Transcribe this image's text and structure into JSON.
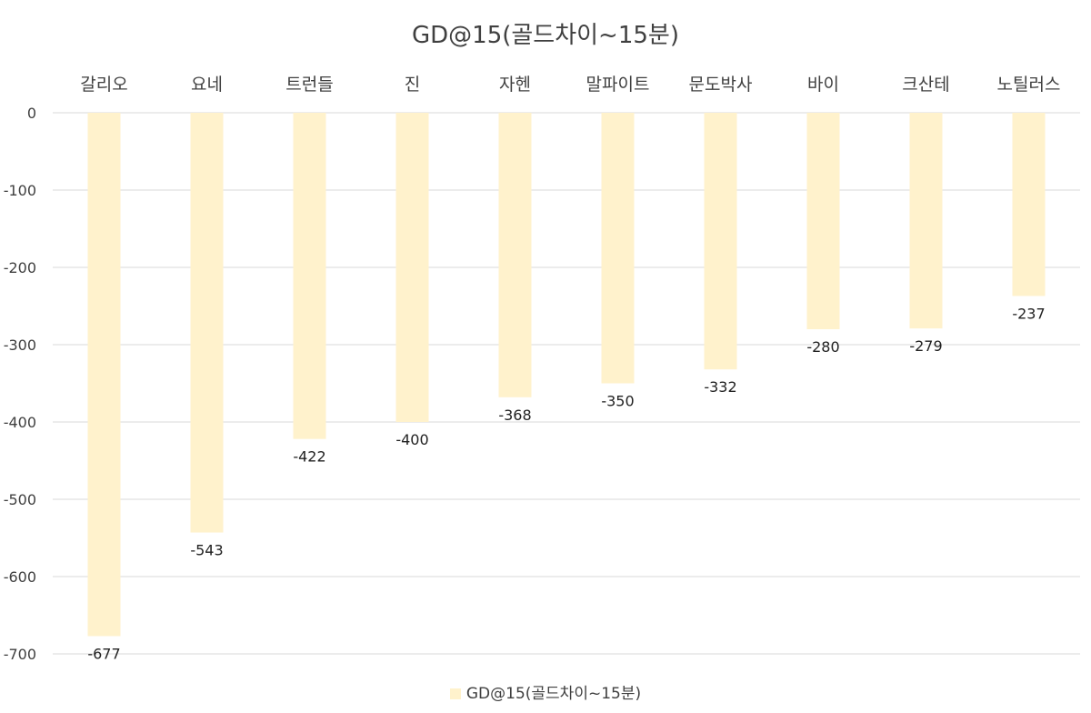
{
  "chart_data": {
    "type": "bar",
    "title": "GD@15(골드차이~15분)",
    "categories": [
      "갈리오",
      "요네",
      "트런들",
      "진",
      "자헨",
      "말파이트",
      "문도박사",
      "바이",
      "크산테",
      "노틸러스"
    ],
    "series": [
      {
        "name": "GD@15(골드차이~15분)",
        "values": [
          -677,
          -543,
          -422,
          -400,
          -368,
          -350,
          -332,
          -280,
          -279,
          -237
        ]
      }
    ],
    "y_ticks": [
      "0",
      "-100",
      "-200",
      "-300",
      "-400",
      "-500",
      "-600",
      "-700"
    ],
    "ylim": [
      -700,
      0
    ],
    "grid": true,
    "legend_position": "bottom",
    "colors": {
      "bar": "#FFF2CC",
      "grid": "#D9D9D9",
      "text": "#404040"
    }
  }
}
